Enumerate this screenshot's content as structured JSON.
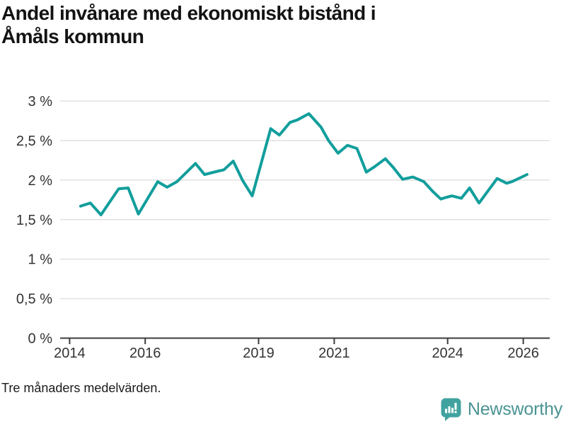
{
  "chart_data": {
    "type": "line",
    "title": "Andel invånare med ekonomiskt bistånd i\nÅmåls kommun",
    "footnote": "Tre månaders medelvärden.",
    "xlabel": "",
    "ylabel": "",
    "unit": "%",
    "xlim": [
      2013.75,
      2026.7
    ],
    "ylim": [
      0,
      3
    ],
    "grid": true,
    "legend": "none",
    "ygridlines": [
      0.5,
      1,
      1.5,
      2,
      2.5,
      3
    ],
    "yticks": [
      {
        "v": 0,
        "label": "0 %"
      },
      {
        "v": 0.5,
        "label": "0,5 %"
      },
      {
        "v": 1,
        "label": "1 %"
      },
      {
        "v": 1.5,
        "label": "1,5 %"
      },
      {
        "v": 2,
        "label": "2 %"
      },
      {
        "v": 2.5,
        "label": "2,5 %"
      },
      {
        "v": 3,
        "label": "3 %"
      }
    ],
    "xticks": [
      {
        "v": 2014,
        "label": "2014"
      },
      {
        "v": 2016,
        "label": "2016"
      },
      {
        "v": 2019,
        "label": "2019"
      },
      {
        "v": 2021,
        "label": "2021"
      },
      {
        "v": 2024,
        "label": "2024"
      },
      {
        "v": 2026,
        "label": "2026"
      }
    ],
    "series": [
      {
        "name": "Andel invånare med ekonomiskt bistånd, Åmåls kommun",
        "color": "#129e9c",
        "points": [
          [
            2014.29,
            1.67
          ],
          [
            2014.55,
            1.71
          ],
          [
            2014.83,
            1.56
          ],
          [
            2015.3,
            1.89
          ],
          [
            2015.55,
            1.9
          ],
          [
            2015.82,
            1.57
          ],
          [
            2016.33,
            1.98
          ],
          [
            2016.58,
            1.91
          ],
          [
            2016.84,
            1.98
          ],
          [
            2017.33,
            2.21
          ],
          [
            2017.57,
            2.07
          ],
          [
            2017.9,
            2.11
          ],
          [
            2018.08,
            2.13
          ],
          [
            2018.33,
            2.24
          ],
          [
            2018.57,
            2.0
          ],
          [
            2018.83,
            1.8
          ],
          [
            2019.32,
            2.65
          ],
          [
            2019.55,
            2.57
          ],
          [
            2019.83,
            2.73
          ],
          [
            2020.02,
            2.76
          ],
          [
            2020.33,
            2.84
          ],
          [
            2020.65,
            2.67
          ],
          [
            2020.85,
            2.5
          ],
          [
            2021.1,
            2.34
          ],
          [
            2021.35,
            2.44
          ],
          [
            2021.6,
            2.4
          ],
          [
            2021.85,
            2.1
          ],
          [
            2022.07,
            2.17
          ],
          [
            2022.35,
            2.27
          ],
          [
            2022.56,
            2.16
          ],
          [
            2022.81,
            2.01
          ],
          [
            2023.08,
            2.04
          ],
          [
            2023.37,
            1.98
          ],
          [
            2023.6,
            1.86
          ],
          [
            2023.82,
            1.76
          ],
          [
            2023.95,
            1.78
          ],
          [
            2024.11,
            1.8
          ],
          [
            2024.36,
            1.77
          ],
          [
            2024.58,
            1.9
          ],
          [
            2024.83,
            1.71
          ],
          [
            2025.31,
            2.02
          ],
          [
            2025.56,
            1.96
          ],
          [
            2025.7,
            1.98
          ],
          [
            2026.1,
            2.07
          ]
        ]
      }
    ],
    "colors": {
      "line": "#129e9c",
      "gridline": "#e1e1e1",
      "axis": "#3c3c3c",
      "tick_label": "#333333",
      "title": "#131313"
    }
  },
  "branding": {
    "logo_text": "Newsworthy",
    "icon": "newsworthy-bars-icon",
    "icon_color": "#41a3a0",
    "text_color": "#4b9394"
  }
}
